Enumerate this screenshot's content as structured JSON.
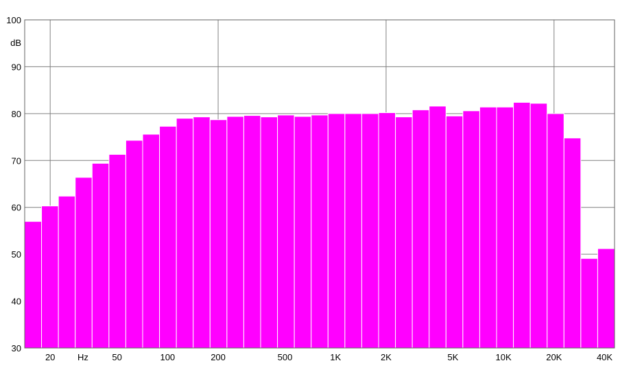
{
  "chart_data": {
    "type": "bar",
    "title": "",
    "xlabel": "",
    "ylabel": "dB",
    "x_unit_label": "Hz",
    "ylim": [
      30,
      100
    ],
    "x_scale": "log",
    "grid": true,
    "bar_color": "#ff00ff",
    "bar_edge_color": "#ffffff",
    "yticks": [
      100,
      90,
      80,
      70,
      60,
      50,
      40,
      30
    ],
    "xticks": [
      {
        "label": "20",
        "value": 20
      },
      {
        "label": "50",
        "value": 50
      },
      {
        "label": "100",
        "value": 100
      },
      {
        "label": "200",
        "value": 200
      },
      {
        "label": "500",
        "value": 500
      },
      {
        "label": "1K",
        "value": 1000
      },
      {
        "label": "2K",
        "value": 2000
      },
      {
        "label": "5K",
        "value": 5000
      },
      {
        "label": "10K",
        "value": 10000
      },
      {
        "label": "20K",
        "value": 20000
      },
      {
        "label": "40K",
        "value": 40000
      }
    ],
    "major_grid_x": [
      20,
      200,
      2000,
      20000
    ],
    "bands_per_octave": 3,
    "band_low_edge_hz": 14.1,
    "values": [
      57.0,
      60.3,
      62.4,
      66.4,
      69.4,
      71.3,
      74.3,
      75.6,
      77.3,
      79.0,
      79.3,
      78.7,
      79.4,
      79.6,
      79.3,
      79.7,
      79.4,
      79.7,
      80.0,
      80.0,
      80.0,
      80.2,
      79.3,
      80.8,
      81.6,
      79.5,
      80.6,
      81.4,
      81.4,
      82.4,
      82.2,
      80.0,
      74.8,
      49.1,
      51.2
    ]
  }
}
